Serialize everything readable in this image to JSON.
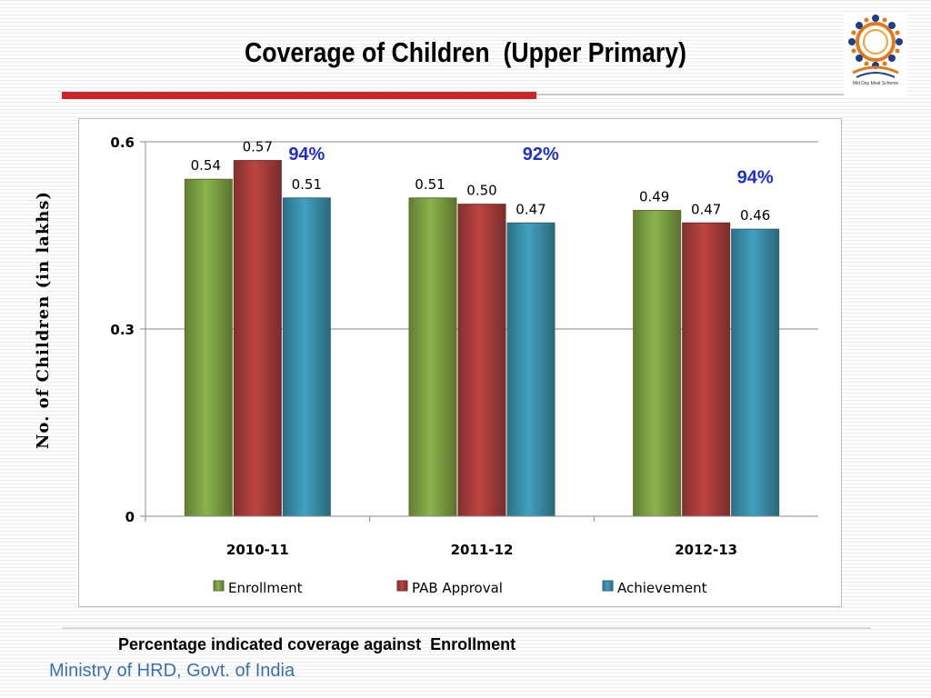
{
  "slide": {
    "title": "Coverage of Children  (Upper Primary)",
    "footnote": "Percentage indicated coverage against  Enrollment",
    "footer": "Ministry of HRD, Govt. of India",
    "logo": {
      "icon": "mid-day-meal-logo",
      "caption": "Mid Day Meal Scheme"
    }
  },
  "chart_data": {
    "type": "bar",
    "title": "",
    "xlabel": "",
    "ylabel": "No. of Children (in lakhs)",
    "ylim": [
      0,
      0.6
    ],
    "yticks": [
      "0",
      "0.3",
      "0.6"
    ],
    "grid": true,
    "legend_position": "bottom",
    "categories": [
      "2010-11",
      "2011-12",
      "2012-13"
    ],
    "series": [
      {
        "name": "Enrollment",
        "color": "#7da043",
        "values": [
          0.54,
          0.51,
          0.49
        ],
        "labels": [
          "0.54",
          "0.51",
          "0.49"
        ]
      },
      {
        "name": "PAB Approval",
        "color": "#a83d3a",
        "values": [
          0.57,
          0.5,
          0.47
        ],
        "labels": [
          "0.57",
          "0.50",
          "0.47"
        ]
      },
      {
        "name": "Achievement",
        "color": "#3a90ab",
        "values": [
          0.51,
          0.47,
          0.46
        ],
        "labels": [
          "0.51",
          "0.47",
          "0.46"
        ]
      }
    ],
    "annotations": [
      {
        "category": "2010-11",
        "text": "94%"
      },
      {
        "category": "2011-12",
        "text": "92%"
      },
      {
        "category": "2012-13",
        "text": "94%"
      }
    ],
    "annotation_color": "#1f2fd0"
  }
}
